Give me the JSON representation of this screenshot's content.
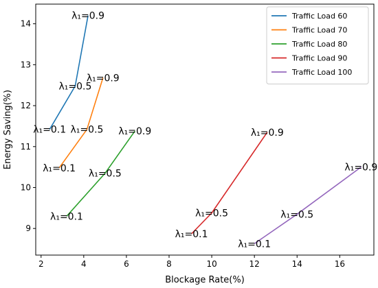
{
  "chart_data": {
    "type": "line",
    "title": "",
    "xlabel": "Blockage Rate(%)",
    "ylabel": "Energy Saving(%)",
    "xlim": [
      1.75,
      17.6
    ],
    "ylim": [
      8.35,
      14.48
    ],
    "xticks": [
      2,
      4,
      6,
      8,
      10,
      12,
      14,
      16
    ],
    "yticks": [
      9,
      10,
      11,
      12,
      13,
      14
    ],
    "grid": false,
    "legend": "top-right",
    "series": [
      {
        "name": "Traffic Load 60",
        "color": "#1f77b4",
        "x": [
          2.4,
          3.6,
          4.2
        ],
        "y": [
          11.42,
          12.48,
          14.2
        ],
        "labels": [
          "λ₁=0.1",
          "λ₁=0.5",
          "λ₁=0.9"
        ]
      },
      {
        "name": "Traffic Load 70",
        "color": "#ff7f0e",
        "x": [
          2.85,
          4.15,
          4.9
        ],
        "y": [
          10.48,
          11.42,
          12.68
        ],
        "labels": [
          "λ₁=0.1",
          "λ₁=0.5",
          "λ₁=0.9"
        ]
      },
      {
        "name": "Traffic Load 80",
        "color": "#2ca02c",
        "x": [
          3.2,
          5.0,
          6.4
        ],
        "y": [
          9.3,
          10.35,
          11.38
        ],
        "labels": [
          "λ₁=0.1",
          "λ₁=0.5",
          "λ₁=0.9"
        ]
      },
      {
        "name": "Traffic Load 90",
        "color": "#d62728",
        "x": [
          9.05,
          10.0,
          12.6
        ],
        "y": [
          8.87,
          9.38,
          11.35
        ],
        "labels": [
          "λ₁=0.1",
          "λ₁=0.5",
          "λ₁=0.9"
        ]
      },
      {
        "name": "Traffic Load 100",
        "color": "#9467bd",
        "x": [
          12.0,
          14.0,
          17.0
        ],
        "y": [
          8.63,
          9.35,
          10.5
        ],
        "labels": [
          "λ₁=0.1",
          "λ₁=0.5",
          "λ₁=0.9"
        ]
      }
    ]
  }
}
